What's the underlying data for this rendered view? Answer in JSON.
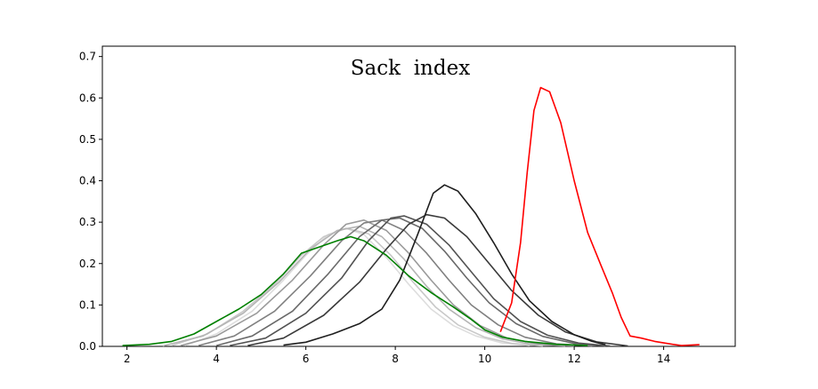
{
  "chart_data": {
    "type": "line",
    "title": "Sack  index",
    "xlabel": "",
    "ylabel": "",
    "xlim": [
      1.45,
      15.6
    ],
    "ylim": [
      0,
      0.725
    ],
    "xticks": [
      2,
      4,
      6,
      8,
      10,
      12,
      14
    ],
    "yticks": [
      0.0,
      0.1,
      0.2,
      0.3,
      0.4,
      0.5,
      0.6,
      0.7
    ],
    "grid": false,
    "legend": "none",
    "series": [
      {
        "color": "#dddddd",
        "points": [
          [
            3.3,
            0.002
          ],
          [
            4.0,
            0.03
          ],
          [
            4.8,
            0.085
          ],
          [
            5.5,
            0.16
          ],
          [
            6.0,
            0.22
          ],
          [
            6.5,
            0.27
          ],
          [
            6.9,
            0.285
          ],
          [
            7.3,
            0.27
          ],
          [
            7.8,
            0.215
          ],
          [
            8.3,
            0.15
          ],
          [
            8.8,
            0.09
          ],
          [
            9.3,
            0.05
          ],
          [
            9.8,
            0.025
          ],
          [
            10.4,
            0.008
          ],
          [
            11.0,
            0.002
          ]
        ]
      },
      {
        "color": "#c8c8c8",
        "points": [
          [
            3.0,
            0.002
          ],
          [
            3.8,
            0.03
          ],
          [
            4.6,
            0.085
          ],
          [
            5.3,
            0.15
          ],
          [
            5.9,
            0.22
          ],
          [
            6.4,
            0.265
          ],
          [
            6.9,
            0.285
          ],
          [
            7.4,
            0.272
          ],
          [
            7.9,
            0.22
          ],
          [
            8.4,
            0.155
          ],
          [
            8.9,
            0.095
          ],
          [
            9.4,
            0.052
          ],
          [
            10.0,
            0.022
          ],
          [
            10.6,
            0.007
          ],
          [
            11.3,
            0.001
          ]
        ]
      },
      {
        "color": "#b4b4b4",
        "points": [
          [
            2.8,
            0.001
          ],
          [
            3.7,
            0.025
          ],
          [
            4.6,
            0.08
          ],
          [
            5.4,
            0.155
          ],
          [
            6.1,
            0.235
          ],
          [
            6.7,
            0.28
          ],
          [
            7.2,
            0.29
          ],
          [
            7.7,
            0.265
          ],
          [
            8.2,
            0.21
          ],
          [
            8.7,
            0.145
          ],
          [
            9.2,
            0.09
          ],
          [
            9.8,
            0.045
          ],
          [
            10.4,
            0.018
          ],
          [
            11.0,
            0.006
          ],
          [
            11.8,
            0.001
          ]
        ]
      },
      {
        "color": "#9a9a9a",
        "points": [
          [
            3.2,
            0.002
          ],
          [
            4.0,
            0.025
          ],
          [
            4.9,
            0.08
          ],
          [
            5.7,
            0.16
          ],
          [
            6.4,
            0.245
          ],
          [
            6.9,
            0.295
          ],
          [
            7.3,
            0.305
          ],
          [
            7.8,
            0.28
          ],
          [
            8.3,
            0.225
          ],
          [
            8.8,
            0.16
          ],
          [
            9.3,
            0.1
          ],
          [
            9.9,
            0.05
          ],
          [
            10.5,
            0.02
          ],
          [
            11.2,
            0.006
          ],
          [
            12.0,
            0.001
          ]
        ]
      },
      {
        "color": "#808080",
        "points": [
          [
            3.6,
            0.002
          ],
          [
            4.4,
            0.025
          ],
          [
            5.3,
            0.085
          ],
          [
            6.1,
            0.17
          ],
          [
            6.8,
            0.255
          ],
          [
            7.3,
            0.298
          ],
          [
            7.7,
            0.305
          ],
          [
            8.2,
            0.28
          ],
          [
            8.7,
            0.225
          ],
          [
            9.2,
            0.16
          ],
          [
            9.7,
            0.1
          ],
          [
            10.3,
            0.052
          ],
          [
            10.9,
            0.022
          ],
          [
            11.6,
            0.006
          ],
          [
            12.4,
            0.001
          ]
        ]
      },
      {
        "color": "#696969",
        "points": [
          [
            4.0,
            0.002
          ],
          [
            4.8,
            0.025
          ],
          [
            5.7,
            0.085
          ],
          [
            6.5,
            0.175
          ],
          [
            7.2,
            0.265
          ],
          [
            7.7,
            0.305
          ],
          [
            8.1,
            0.31
          ],
          [
            8.6,
            0.285
          ],
          [
            9.1,
            0.23
          ],
          [
            9.6,
            0.165
          ],
          [
            10.1,
            0.105
          ],
          [
            10.7,
            0.055
          ],
          [
            11.3,
            0.024
          ],
          [
            12.0,
            0.007
          ],
          [
            12.7,
            0.001
          ]
        ]
      },
      {
        "color": "#525252",
        "points": [
          [
            4.3,
            0.002
          ],
          [
            5.1,
            0.02
          ],
          [
            6.0,
            0.08
          ],
          [
            6.8,
            0.165
          ],
          [
            7.4,
            0.255
          ],
          [
            7.9,
            0.31
          ],
          [
            8.2,
            0.315
          ],
          [
            8.7,
            0.295
          ],
          [
            9.2,
            0.245
          ],
          [
            9.7,
            0.18
          ],
          [
            10.2,
            0.115
          ],
          [
            10.8,
            0.06
          ],
          [
            11.4,
            0.027
          ],
          [
            12.1,
            0.008
          ],
          [
            12.8,
            0.001
          ]
        ]
      },
      {
        "color": "#3a3a3a",
        "points": [
          [
            4.7,
            0.002
          ],
          [
            5.5,
            0.02
          ],
          [
            6.4,
            0.075
          ],
          [
            7.2,
            0.155
          ],
          [
            7.8,
            0.235
          ],
          [
            8.3,
            0.295
          ],
          [
            8.7,
            0.318
          ],
          [
            9.1,
            0.31
          ],
          [
            9.6,
            0.265
          ],
          [
            10.1,
            0.2
          ],
          [
            10.6,
            0.135
          ],
          [
            11.2,
            0.075
          ],
          [
            11.8,
            0.035
          ],
          [
            12.5,
            0.011
          ],
          [
            13.2,
            0.001
          ]
        ]
      },
      {
        "color": "#1e1e1e",
        "points": [
          [
            5.5,
            0.003
          ],
          [
            6.0,
            0.01
          ],
          [
            6.6,
            0.03
          ],
          [
            7.2,
            0.055
          ],
          [
            7.7,
            0.09
          ],
          [
            8.1,
            0.16
          ],
          [
            8.5,
            0.27
          ],
          [
            8.85,
            0.37
          ],
          [
            9.1,
            0.39
          ],
          [
            9.4,
            0.375
          ],
          [
            9.8,
            0.32
          ],
          [
            10.2,
            0.25
          ],
          [
            10.6,
            0.175
          ],
          [
            11.0,
            0.11
          ],
          [
            11.5,
            0.06
          ],
          [
            12.0,
            0.028
          ],
          [
            12.4,
            0.012
          ],
          [
            12.7,
            0.004
          ]
        ]
      },
      {
        "color": "#008000",
        "points": [
          [
            1.9,
            0.002
          ],
          [
            2.5,
            0.005
          ],
          [
            3.0,
            0.012
          ],
          [
            3.5,
            0.03
          ],
          [
            4.0,
            0.06
          ],
          [
            4.5,
            0.09
          ],
          [
            5.0,
            0.125
          ],
          [
            5.5,
            0.175
          ],
          [
            5.9,
            0.225
          ],
          [
            6.3,
            0.24
          ],
          [
            6.7,
            0.255
          ],
          [
            7.0,
            0.265
          ],
          [
            7.3,
            0.255
          ],
          [
            7.8,
            0.22
          ],
          [
            8.3,
            0.17
          ],
          [
            8.8,
            0.13
          ],
          [
            9.3,
            0.095
          ],
          [
            9.7,
            0.065
          ],
          [
            10.0,
            0.04
          ],
          [
            10.4,
            0.022
          ],
          [
            10.9,
            0.012
          ],
          [
            11.6,
            0.005
          ],
          [
            12.3,
            0.002
          ]
        ]
      },
      {
        "color": "#ff0000",
        "points": [
          [
            10.35,
            0.035
          ],
          [
            10.6,
            0.105
          ],
          [
            10.8,
            0.25
          ],
          [
            10.95,
            0.42
          ],
          [
            11.1,
            0.57
          ],
          [
            11.25,
            0.625
          ],
          [
            11.45,
            0.615
          ],
          [
            11.7,
            0.54
          ],
          [
            12.0,
            0.4
          ],
          [
            12.3,
            0.275
          ],
          [
            12.6,
            0.195
          ],
          [
            12.85,
            0.13
          ],
          [
            13.05,
            0.07
          ],
          [
            13.25,
            0.025
          ],
          [
            13.5,
            0.02
          ],
          [
            13.8,
            0.012
          ],
          [
            14.2,
            0.005
          ],
          [
            14.4,
            0.002
          ],
          [
            14.8,
            0.004
          ]
        ]
      }
    ]
  }
}
